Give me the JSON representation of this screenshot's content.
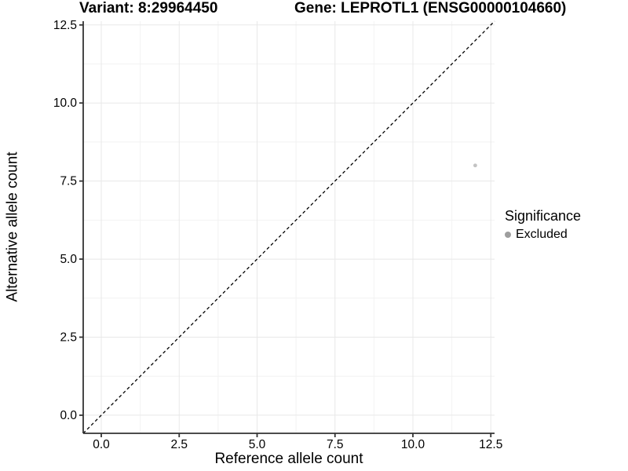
{
  "chart_data": {
    "type": "scatter",
    "titles": {
      "left": "Variant: 8:29964450",
      "right": "Gene: LEPROTL1 (ENSG00000104660)"
    },
    "xlabel": "Reference allele count",
    "ylabel": "Alternative allele count",
    "xlim": [
      -0.58,
      12.62
    ],
    "ylim": [
      -0.58,
      12.62
    ],
    "ticks": [
      0,
      2.5,
      5,
      7.5,
      10,
      12.5
    ],
    "tick_labels": [
      "0.0",
      "2.5",
      "5.0",
      "7.5",
      "10.0",
      "12.5"
    ],
    "minor_ticks": [
      1.25,
      3.75,
      6.25,
      8.75,
      11.25
    ],
    "grid": true,
    "identity_line": {
      "style": "dashed",
      "from": [
        -0.58,
        -0.58
      ],
      "to": [
        12.62,
        12.62
      ],
      "color": "#000000"
    },
    "series": [
      {
        "name": "Excluded",
        "color": "#c3c3c3",
        "points": [
          {
            "x": 12,
            "y": 8
          }
        ]
      }
    ],
    "legend": {
      "title": "Significance",
      "position": "right",
      "items": [
        {
          "label": "Excluded",
          "color": "#9e9e9e"
        }
      ]
    },
    "colors": {
      "axis": "#333333",
      "grid_major": "#e8e8e8",
      "grid_minor": "#f2f2f2",
      "tick_text": "#000000"
    }
  }
}
